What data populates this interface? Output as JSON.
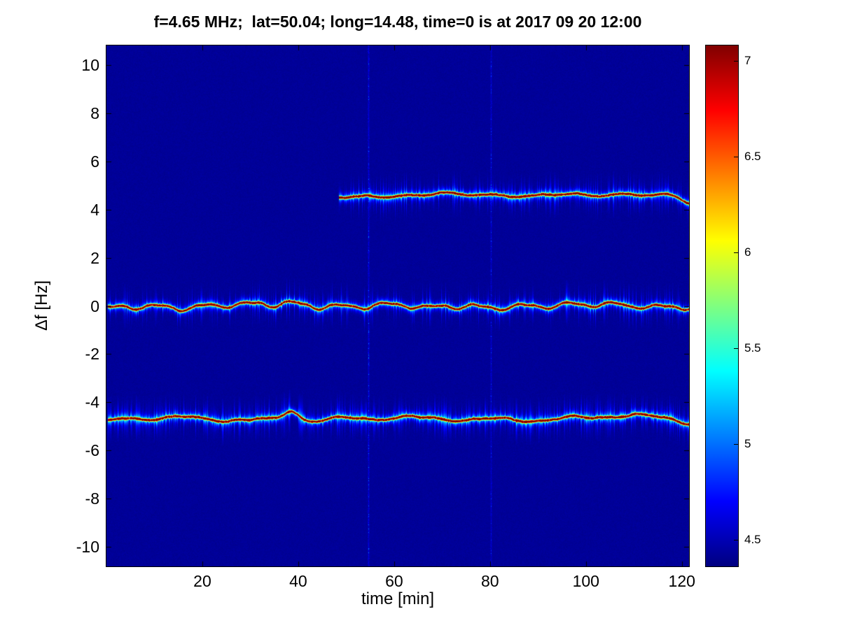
{
  "title": "f=4.65 MHz;  lat=50.04; long=14.48, time=0 is at 2017 09 20 12:00",
  "axes": {
    "xlabel": "time [min]",
    "ylabel": "Δf [Hz]",
    "x_ticks": [
      20,
      40,
      60,
      80,
      100,
      120
    ],
    "y_ticks": [
      -10,
      -8,
      -6,
      -4,
      -2,
      0,
      2,
      4,
      6,
      8,
      10
    ],
    "x_range": [
      0,
      121.5
    ],
    "y_range": [
      -10.8,
      10.8
    ]
  },
  "chart_data": {
    "type": "heatmap",
    "title": "f=4.65 MHz;  lat=50.04; long=14.48, time=0 is at 2017 09 20 12:00",
    "xlabel": "time [min]",
    "ylabel": "Δf [Hz]",
    "x_range_min": [
      0,
      121.5
    ],
    "y_range_hz": [
      -10.8,
      10.8
    ],
    "background_value": 4.4,
    "color_scale": {
      "colormap": "jet",
      "vmin": 4.36,
      "vmax": 7.08,
      "tick_values": [
        4.5,
        5,
        5.5,
        6,
        6.5,
        7
      ],
      "stops": [
        [
          0,
          "#000080"
        ],
        [
          0.125,
          "#0000ff"
        ],
        [
          0.375,
          "#00ffff"
        ],
        [
          0.625,
          "#ffff00"
        ],
        [
          0.875,
          "#ff0000"
        ],
        [
          1,
          "#800000"
        ]
      ]
    },
    "traces": [
      {
        "name": "upper sideband near +4.5 Hz",
        "center_hz": 4.55,
        "t_start": 48.5,
        "t_end": 121.5,
        "peak_value": 7.05,
        "seed": 7,
        "waves": [
          {
            "amp": 0.08,
            "period": 120,
            "phase": -2.6
          },
          {
            "amp": 0.05,
            "period": 23,
            "phase": 0.8
          },
          {
            "amp": 0.035,
            "period": 9,
            "phase": 2.0
          }
        ],
        "bumps": [
          {
            "t": 50,
            "amp": -0.08,
            "width": 4
          },
          {
            "t": 108,
            "amp": 0.15,
            "width": 6
          },
          {
            "t": 121.5,
            "amp": -0.25,
            "width": 2
          }
        ],
        "streak_prob": 0.4
      },
      {
        "name": "carrier near 0 Hz",
        "center_hz": 0.02,
        "t_start": 0.3,
        "t_end": 121.5,
        "peak_value": 7.0,
        "seed": 11,
        "waves": [
          {
            "amp": 0.1,
            "period": 9.5,
            "phase": 0.6
          },
          {
            "amp": 0.05,
            "period": 34,
            "phase": 2.1
          },
          {
            "amp": 0.03,
            "period": 4.8,
            "phase": 3.0
          }
        ],
        "bumps": [
          {
            "t": 1,
            "amp": -0.15,
            "width": 2.5
          },
          {
            "t": 38,
            "amp": 0.1,
            "width": 2.5
          },
          {
            "t": 67,
            "amp": -0.12,
            "width": 3
          }
        ],
        "streak_prob": 0.3
      },
      {
        "name": "lower sideband near -4.7 Hz",
        "center_hz": -4.68,
        "t_start": 0.3,
        "t_end": 121.5,
        "peak_value": 7.0,
        "seed": 23,
        "waves": [
          {
            "amp": 0.07,
            "period": 16,
            "phase": 1.2
          },
          {
            "amp": 0.05,
            "period": 50,
            "phase": 0.2
          },
          {
            "amp": 0.03,
            "period": 7,
            "phase": 2.4
          }
        ],
        "bumps": [
          {
            "t": 0.5,
            "amp": -0.12,
            "width": 2
          },
          {
            "t": 38.5,
            "amp": 0.45,
            "width": 2.2
          },
          {
            "t": 105,
            "amp": 0.1,
            "width": 9
          },
          {
            "t": 120.5,
            "amp": -0.12,
            "width": 2.5
          }
        ],
        "streak_prob": 0.55
      }
    ],
    "vertical_interference_lines": [
      {
        "t_min": 54.6,
        "strength": 1.0
      },
      {
        "t_min": 80.2,
        "strength": 0.75
      }
    ]
  }
}
